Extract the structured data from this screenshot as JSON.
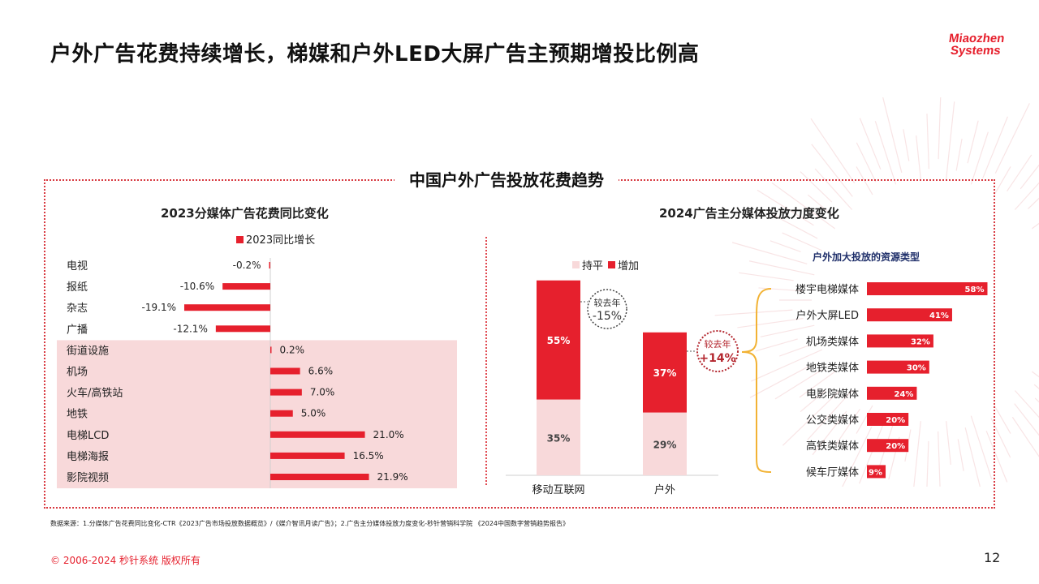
{
  "page": {
    "title": "户外广告花费持续增长，梯媒和户外LED大屏广告主预期增投比例高",
    "logo_line1": "Miaozhen",
    "logo_line2": "Systems",
    "section_title": "中国户外广告投放花费趋势",
    "footnote": "数据来源：1.分媒体广告花费同比变化-CTR《2023广告市场投放数据概览》/《媒介智讯月读广告》；2.广告主分媒体投放力度变化-秒针营销科学院 《2024中国数字营销趋势报告》",
    "copyright": "© 2006-2024 秒针系统 版权所有",
    "page_number": "12"
  },
  "colors": {
    "accent": "#e6202d",
    "light_red": "#f8d9da",
    "pale": "#fbe6e7",
    "bracket": "#f2b233"
  },
  "chart_data": [
    {
      "type": "bar",
      "orientation": "horizontal",
      "title": "2023分媒体广告花费同比变化",
      "legend": "2023同比增长",
      "legend_position": "top",
      "categories": [
        "电视",
        "报纸",
        "杂志",
        "广播",
        "街道设施",
        "机场",
        "火车/高铁站",
        "地铁",
        "电梯LCD",
        "电梯海报",
        "影院视频"
      ],
      "values": [
        -0.2,
        -10.6,
        -19.1,
        -12.1,
        0.2,
        6.6,
        7.0,
        5.0,
        21.0,
        16.5,
        21.9
      ],
      "labels": [
        "-0.2%",
        "-10.6%",
        "-19.1%",
        "-12.1%",
        "0.2%",
        "6.6%",
        "7.0%",
        "5.0%",
        "21.0%",
        "16.5%",
        "21.9%"
      ],
      "highlighted_from": "街道设施",
      "xlim": [
        -25,
        25
      ]
    },
    {
      "type": "bar",
      "stacked": true,
      "title": "2024广告主分媒体投放力度变化",
      "categories": [
        "移动互联网",
        "户外"
      ],
      "series": [
        {
          "name": "持平",
          "values": [
            35,
            29
          ],
          "labels": [
            "35%",
            "29%"
          ]
        },
        {
          "name": "增加",
          "values": [
            55,
            37
          ],
          "labels": [
            "55%",
            "37%"
          ]
        }
      ],
      "annotations": [
        {
          "category": "移动互联网",
          "line1": "较去年",
          "line2": "-15%"
        },
        {
          "category": "户外",
          "line1": "较去年",
          "line2": "+14%"
        }
      ],
      "legend_position": "top"
    },
    {
      "type": "bar",
      "orientation": "horizontal",
      "title": "户外加大投放的资源类型",
      "categories": [
        "楼宇电梯媒体",
        "户外大屏LED",
        "机场类媒体",
        "地铁类媒体",
        "电影院媒体",
        "公交类媒体",
        "高铁类媒体",
        "候车厅媒体"
      ],
      "values": [
        58,
        41,
        32,
        30,
        24,
        20,
        20,
        9
      ],
      "labels": [
        "58%",
        "41%",
        "32%",
        "30%",
        "24%",
        "20%",
        "20%",
        "9%"
      ],
      "xlim": [
        0,
        60
      ]
    }
  ]
}
